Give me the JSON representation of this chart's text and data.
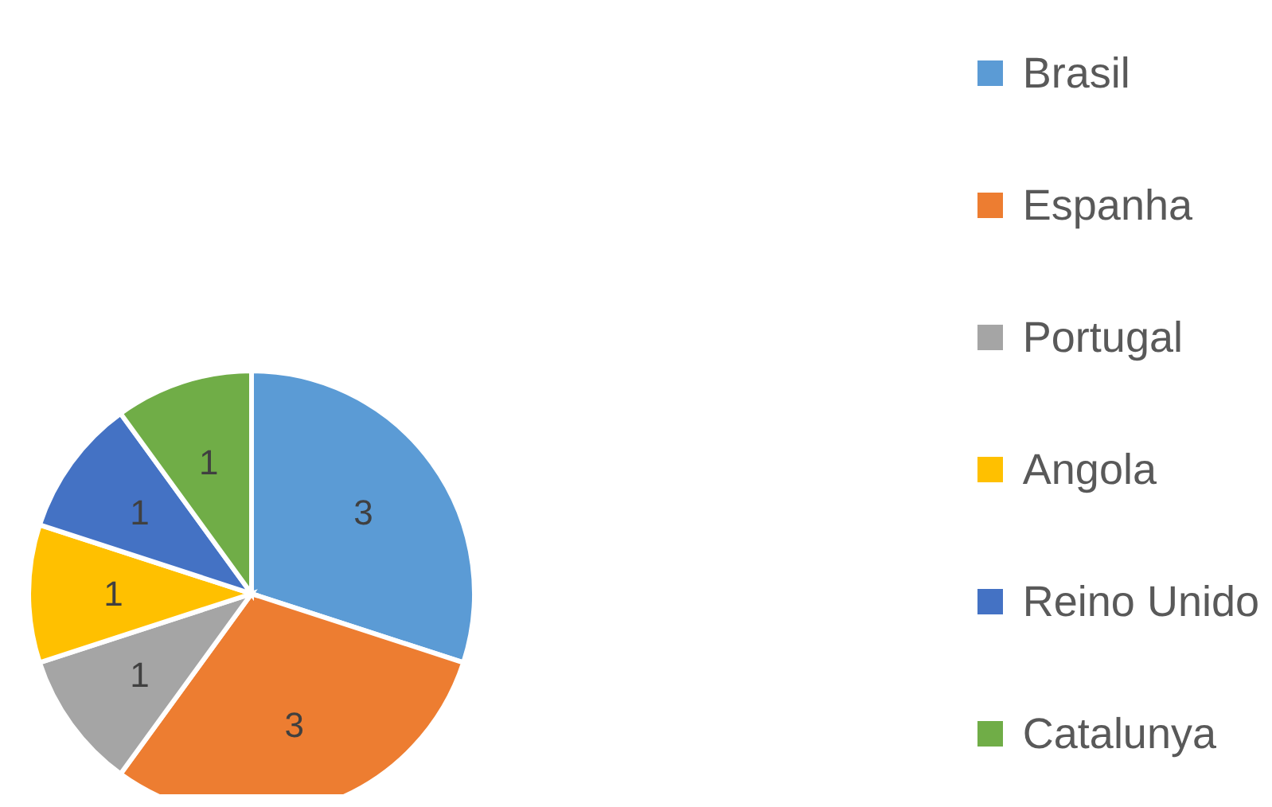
{
  "chart_data": {
    "type": "pie",
    "categories": [
      "Brasil",
      "Espanha",
      "Portugal",
      "Angola",
      "Reino Unido",
      "Catalunya"
    ],
    "values": [
      3,
      3,
      1,
      1,
      1,
      1
    ],
    "colors": [
      "#5b9bd5",
      "#ed7d31",
      "#a5a5a5",
      "#ffc000",
      "#4472c4",
      "#70ad47"
    ],
    "data_labels": true,
    "legend": "right"
  }
}
